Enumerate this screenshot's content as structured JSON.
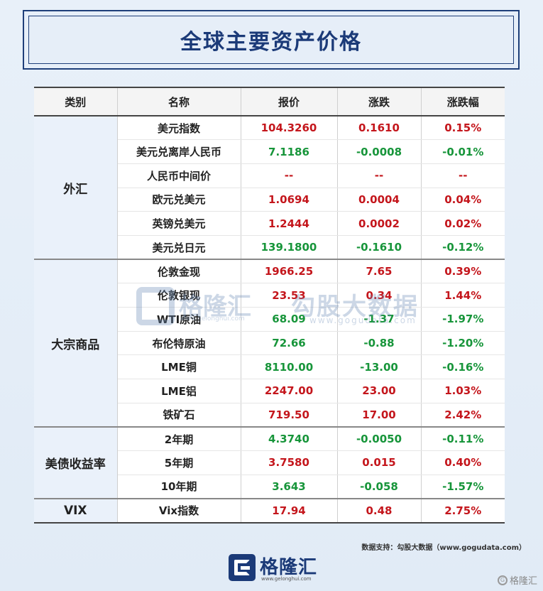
{
  "title": "全球主要资产价格",
  "headers": [
    "类别",
    "名称",
    "报价",
    "涨跌",
    "涨跌幅"
  ],
  "groups": [
    {
      "category": "外汇",
      "rows": [
        {
          "name": "美元指数",
          "price": "104.3260",
          "change": "0.1610",
          "pct": "0.15%",
          "dir": "up"
        },
        {
          "name": "美元兑离岸人民币",
          "price": "7.1186",
          "change": "-0.0008",
          "pct": "-0.01%",
          "dir": "down"
        },
        {
          "name": "人民币中间价",
          "price": "--",
          "change": "--",
          "pct": "--",
          "dir": "none"
        },
        {
          "name": "欧元兑美元",
          "price": "1.0694",
          "change": "0.0004",
          "pct": "0.04%",
          "dir": "up"
        },
        {
          "name": "英镑兑美元",
          "price": "1.2444",
          "change": "0.0002",
          "pct": "0.02%",
          "dir": "up"
        },
        {
          "name": "美元兑日元",
          "price": "139.1800",
          "change": "-0.1610",
          "pct": "-0.12%",
          "dir": "down"
        }
      ]
    },
    {
      "category": "大宗商品",
      "rows": [
        {
          "name": "伦敦金现",
          "price": "1966.25",
          "change": "7.65",
          "pct": "0.39%",
          "dir": "up"
        },
        {
          "name": "伦敦银现",
          "price": "23.53",
          "change": "0.34",
          "pct": "1.44%",
          "dir": "up"
        },
        {
          "name": "WTI原油",
          "price": "68.09",
          "change": "-1.37",
          "pct": "-1.97%",
          "dir": "down"
        },
        {
          "name": "布伦特原油",
          "price": "72.66",
          "change": "-0.88",
          "pct": "-1.20%",
          "dir": "down"
        },
        {
          "name": "LME铜",
          "price": "8110.00",
          "change": "-13.00",
          "pct": "-0.16%",
          "dir": "down"
        },
        {
          "name": "LME铝",
          "price": "2247.00",
          "change": "23.00",
          "pct": "1.03%",
          "dir": "up"
        },
        {
          "name": "铁矿石",
          "price": "719.50",
          "change": "17.00",
          "pct": "2.42%",
          "dir": "up"
        }
      ]
    },
    {
      "category": "美债收益率",
      "rows": [
        {
          "name": "2年期",
          "price": "4.3740",
          "change": "-0.0050",
          "pct": "-0.11%",
          "dir": "down"
        },
        {
          "name": "5年期",
          "price": "3.7580",
          "change": "0.015",
          "pct": "0.40%",
          "dir": "up"
        },
        {
          "name": "10年期",
          "price": "3.643",
          "change": "-0.058",
          "pct": "-1.57%",
          "dir": "down"
        }
      ]
    },
    {
      "category": "VIX",
      "rows": [
        {
          "name": "Vix指数",
          "price": "17.94",
          "change": "0.48",
          "pct": "2.75%",
          "dir": "up"
        }
      ]
    }
  ],
  "watermark": {
    "brand_cn": "格隆汇",
    "brand_url": "www.gelonghui.com",
    "data_cn": "勾股大数据",
    "data_url": "www.gogudata.com"
  },
  "source": "数据支持：勾股大数据（www.gogudata.com）",
  "brand": {
    "name": "格隆汇",
    "url": "www.gelonghui.com"
  },
  "corner_watermark": "格隆汇",
  "colors": {
    "up": "#c4161c",
    "down": "#17953a",
    "title": "#1b3a78"
  }
}
